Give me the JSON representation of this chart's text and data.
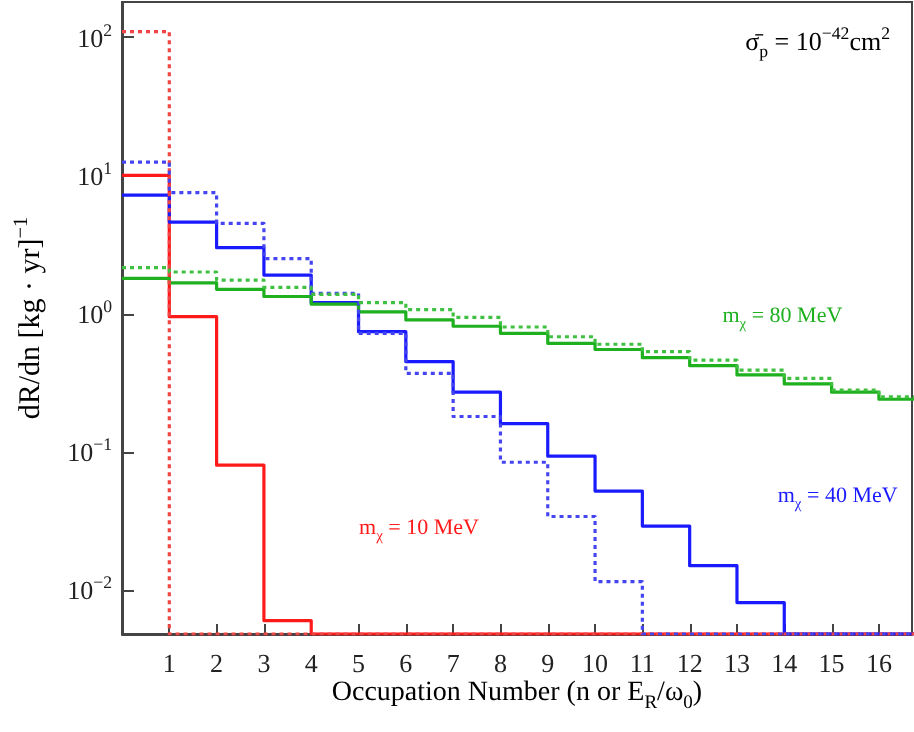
{
  "chart_data": {
    "type": "histogram",
    "xlabel": "Occupation Number (n or E$_{R}$/ω$_{0}$)",
    "ylabel": "dR/dn  [kg · yr]$^{−1}$",
    "annotations": [
      "σ̄$_{p}$ = 10$^{−42}$cm$^{2}$"
    ],
    "bins": [
      0,
      1,
      2,
      3,
      4,
      5,
      6,
      7,
      8,
      9,
      10,
      11,
      12,
      13,
      14,
      15,
      16,
      17
    ],
    "series": [
      {
        "name": "m$_{χ}$ = 10 MeV",
        "color": "#ff1a1a",
        "line_style": "solid",
        "values": [
          10,
          0.95,
          0.08,
          0.006,
          null,
          null,
          null,
          null,
          null,
          null,
          null,
          null,
          null,
          null,
          null,
          null,
          null
        ]
      },
      {
        "name": "m$_{χ}$ = 40 MeV",
        "color": "#1a1aff",
        "line_style": "solid",
        "values": [
          7.2,
          4.6,
          3.0,
          1.9,
          1.2,
          0.74,
          0.45,
          0.27,
          0.16,
          0.093,
          0.052,
          0.029,
          0.015,
          0.0081,
          null,
          null,
          null
        ]
      },
      {
        "name": "m$_{χ}$ = 80 MeV",
        "color": "#1fb01f",
        "line_style": "solid",
        "values": [
          1.8,
          1.67,
          1.5,
          1.33,
          1.17,
          1.03,
          0.9,
          0.81,
          0.72,
          0.61,
          0.55,
          0.48,
          0.42,
          0.36,
          0.31,
          0.27,
          0.24
        ]
      },
      {
        "color": "#f04545",
        "line_style": "dotted",
        "values": [
          110,
          null,
          null,
          null,
          null,
          null,
          null,
          null,
          null,
          null,
          null,
          null,
          null,
          null,
          null,
          null,
          null
        ]
      },
      {
        "color": "#4545f0",
        "line_style": "dotted",
        "values": [
          12.5,
          7.5,
          4.5,
          2.5,
          1.4,
          0.72,
          0.37,
          0.18,
          0.084,
          0.034,
          0.0115,
          null,
          null,
          null,
          null,
          null,
          null
        ]
      },
      {
        "color": "#40c040",
        "line_style": "dotted",
        "values": [
          2.15,
          2.0,
          1.75,
          1.55,
          1.38,
          1.2,
          1.07,
          0.94,
          0.8,
          0.68,
          0.6,
          0.53,
          0.46,
          0.39,
          0.34,
          0.28,
          0.25
        ]
      }
    ],
    "xlim": [
      0,
      16.7
    ],
    "xticks": [
      1,
      2,
      3,
      4,
      5,
      6,
      7,
      8,
      9,
      10,
      11,
      12,
      13,
      14,
      15,
      16
    ],
    "ylim": [
      0.0048,
      180
    ],
    "yticks": [
      {
        "value": 0.01,
        "label": "10$^{−2}$"
      },
      {
        "value": 0.1,
        "label": "10$^{−1}$"
      },
      {
        "value": 1,
        "label": "10$^{0}$"
      },
      {
        "value": 10,
        "label": "10$^{1}$"
      },
      {
        "value": 100,
        "label": "10$^{2}$"
      }
    ],
    "log": "y",
    "grid": false,
    "legend": false
  }
}
